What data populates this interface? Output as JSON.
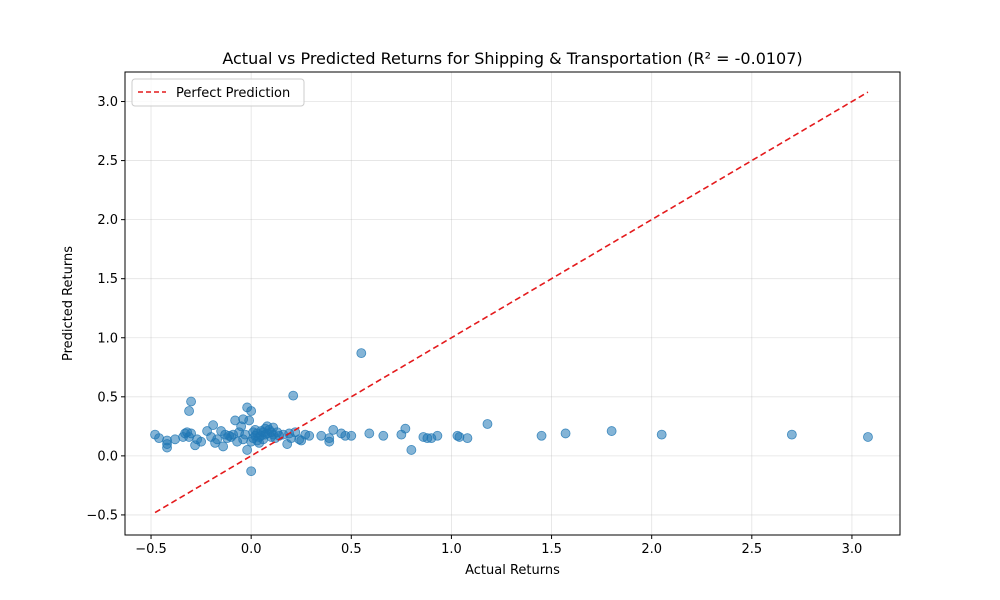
{
  "chart_data": {
    "type": "scatter",
    "title": "Actual vs Predicted Returns for Shipping & Transportation (R² = -0.0107)",
    "xlabel": "Actual Returns",
    "ylabel": "Predicted Returns",
    "xlim": [
      -0.63,
      3.24
    ],
    "ylim": [
      -0.67,
      3.25
    ],
    "xticks": [
      -0.5,
      0.0,
      0.5,
      1.0,
      1.5,
      2.0,
      2.5,
      3.0
    ],
    "xtick_labels": [
      "−0.5",
      "0.0",
      "0.5",
      "1.0",
      "1.5",
      "2.0",
      "2.5",
      "3.0"
    ],
    "yticks": [
      -0.5,
      0.0,
      0.5,
      1.0,
      1.5,
      2.0,
      2.5,
      3.0
    ],
    "ytick_labels": [
      "−0.5",
      "0.0",
      "0.5",
      "1.0",
      "1.5",
      "2.0",
      "2.5",
      "3.0"
    ],
    "grid": true,
    "legend_position": "top-left",
    "series": [
      {
        "kind": "points",
        "color": "#1f77b4",
        "points": [
          [
            -0.48,
            0.18
          ],
          [
            -0.46,
            0.15
          ],
          [
            -0.42,
            0.07
          ],
          [
            -0.42,
            0.1
          ],
          [
            -0.42,
            0.13
          ],
          [
            -0.38,
            0.14
          ],
          [
            -0.34,
            0.16
          ],
          [
            -0.33,
            0.19
          ],
          [
            -0.32,
            0.2
          ],
          [
            -0.31,
            0.38
          ],
          [
            -0.31,
            0.16
          ],
          [
            -0.3,
            0.46
          ],
          [
            -0.3,
            0.19
          ],
          [
            -0.28,
            0.09
          ],
          [
            -0.27,
            0.14
          ],
          [
            -0.25,
            0.12
          ],
          [
            -0.22,
            0.21
          ],
          [
            -0.2,
            0.16
          ],
          [
            -0.19,
            0.26
          ],
          [
            -0.18,
            0.11
          ],
          [
            -0.17,
            0.14
          ],
          [
            -0.15,
            0.21
          ],
          [
            -0.14,
            0.08
          ],
          [
            -0.13,
            0.18
          ],
          [
            -0.12,
            0.15
          ],
          [
            -0.11,
            0.17
          ],
          [
            -0.1,
            0.16
          ],
          [
            -0.09,
            0.18
          ],
          [
            -0.08,
            0.3
          ],
          [
            -0.07,
            0.12
          ],
          [
            -0.06,
            0.2
          ],
          [
            -0.05,
            0.25
          ],
          [
            -0.04,
            0.31
          ],
          [
            -0.04,
            0.14
          ],
          [
            -0.03,
            0.18
          ],
          [
            -0.02,
            0.05
          ],
          [
            -0.02,
            0.41
          ],
          [
            -0.01,
            0.3
          ],
          [
            0.0,
            0.38
          ],
          [
            0.0,
            0.12
          ],
          [
            0.0,
            -0.13
          ],
          [
            0.01,
            0.2
          ],
          [
            0.01,
            0.15
          ],
          [
            0.02,
            0.17
          ],
          [
            0.02,
            0.22
          ],
          [
            0.03,
            0.13
          ],
          [
            0.03,
            0.19
          ],
          [
            0.04,
            0.16
          ],
          [
            0.04,
            0.11
          ],
          [
            0.05,
            0.21
          ],
          [
            0.05,
            0.17
          ],
          [
            0.06,
            0.2
          ],
          [
            0.06,
            0.14
          ],
          [
            0.07,
            0.23
          ],
          [
            0.07,
            0.18
          ],
          [
            0.08,
            0.25
          ],
          [
            0.08,
            0.19
          ],
          [
            0.09,
            0.22
          ],
          [
            0.1,
            0.16
          ],
          [
            0.1,
            0.2
          ],
          [
            0.11,
            0.24
          ],
          [
            0.11,
            0.18
          ],
          [
            0.12,
            0.15
          ],
          [
            0.13,
            0.2
          ],
          [
            0.14,
            0.17
          ],
          [
            0.16,
            0.18
          ],
          [
            0.18,
            0.1
          ],
          [
            0.19,
            0.19
          ],
          [
            0.2,
            0.15
          ],
          [
            0.21,
            0.51
          ],
          [
            0.22,
            0.2
          ],
          [
            0.24,
            0.14
          ],
          [
            0.25,
            0.13
          ],
          [
            0.27,
            0.18
          ],
          [
            0.29,
            0.17
          ],
          [
            0.35,
            0.17
          ],
          [
            0.39,
            0.12
          ],
          [
            0.39,
            0.15
          ],
          [
            0.41,
            0.22
          ],
          [
            0.45,
            0.19
          ],
          [
            0.47,
            0.17
          ],
          [
            0.5,
            0.17
          ],
          [
            0.55,
            0.87
          ],
          [
            0.59,
            0.19
          ],
          [
            0.66,
            0.17
          ],
          [
            0.75,
            0.18
          ],
          [
            0.77,
            0.23
          ],
          [
            0.8,
            0.05
          ],
          [
            0.86,
            0.16
          ],
          [
            0.88,
            0.15
          ],
          [
            0.9,
            0.15
          ],
          [
            0.93,
            0.17
          ],
          [
            1.03,
            0.17
          ],
          [
            1.04,
            0.16
          ],
          [
            1.08,
            0.15
          ],
          [
            1.18,
            0.27
          ],
          [
            1.45,
            0.17
          ],
          [
            1.57,
            0.19
          ],
          [
            1.8,
            0.21
          ],
          [
            2.05,
            0.18
          ],
          [
            2.7,
            0.18
          ],
          [
            3.08,
            0.16
          ]
        ]
      },
      {
        "name": "Perfect Prediction",
        "kind": "line",
        "style": "dashed",
        "color": "#e41a1c",
        "x": [
          -0.48,
          3.08
        ],
        "y": [
          -0.48,
          3.08
        ]
      }
    ]
  }
}
